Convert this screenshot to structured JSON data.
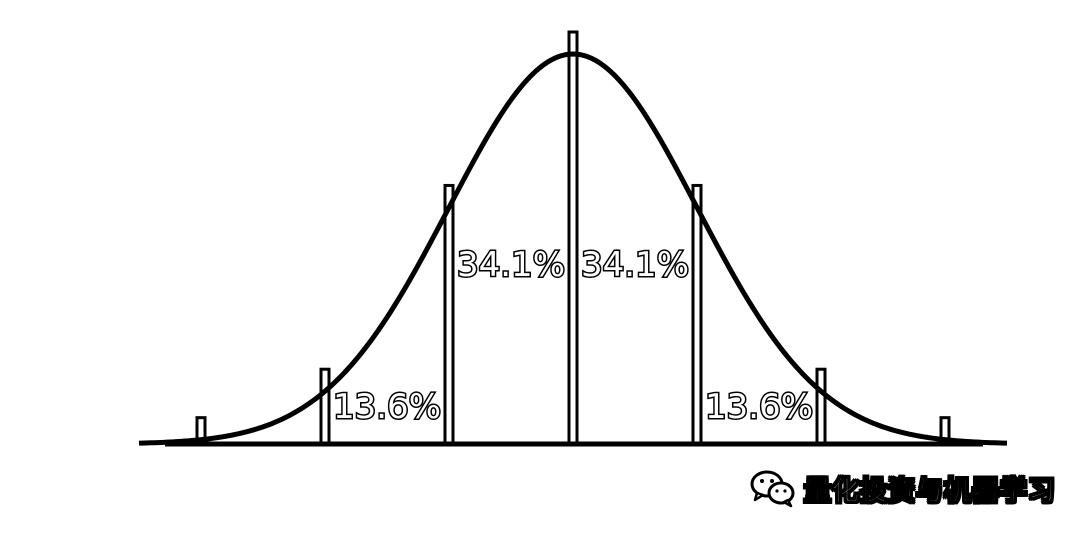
{
  "chart_data": {
    "type": "area",
    "distribution": "normal",
    "x_sigma_range": [
      -3.5,
      3.5
    ],
    "boundaries_sigma": [
      -3,
      -2,
      -1,
      0,
      1,
      2,
      3
    ],
    "regions": [
      {
        "from_sigma": -2,
        "to_sigma": -1,
        "label": "13.6%"
      },
      {
        "from_sigma": -1,
        "to_sigma": 0,
        "label": "34.1%"
      },
      {
        "from_sigma": 0,
        "to_sigma": 1,
        "label": "34.1%"
      },
      {
        "from_sigma": 1,
        "to_sigma": 2,
        "label": "13.6%"
      }
    ],
    "colors": {
      "curve": "#000000",
      "fill": "#ffffff",
      "label_fill": "#ffffff",
      "label_outline": "#000000"
    }
  },
  "watermark": {
    "icon": "wechat-icon",
    "text": "量化投资与机器学习"
  }
}
